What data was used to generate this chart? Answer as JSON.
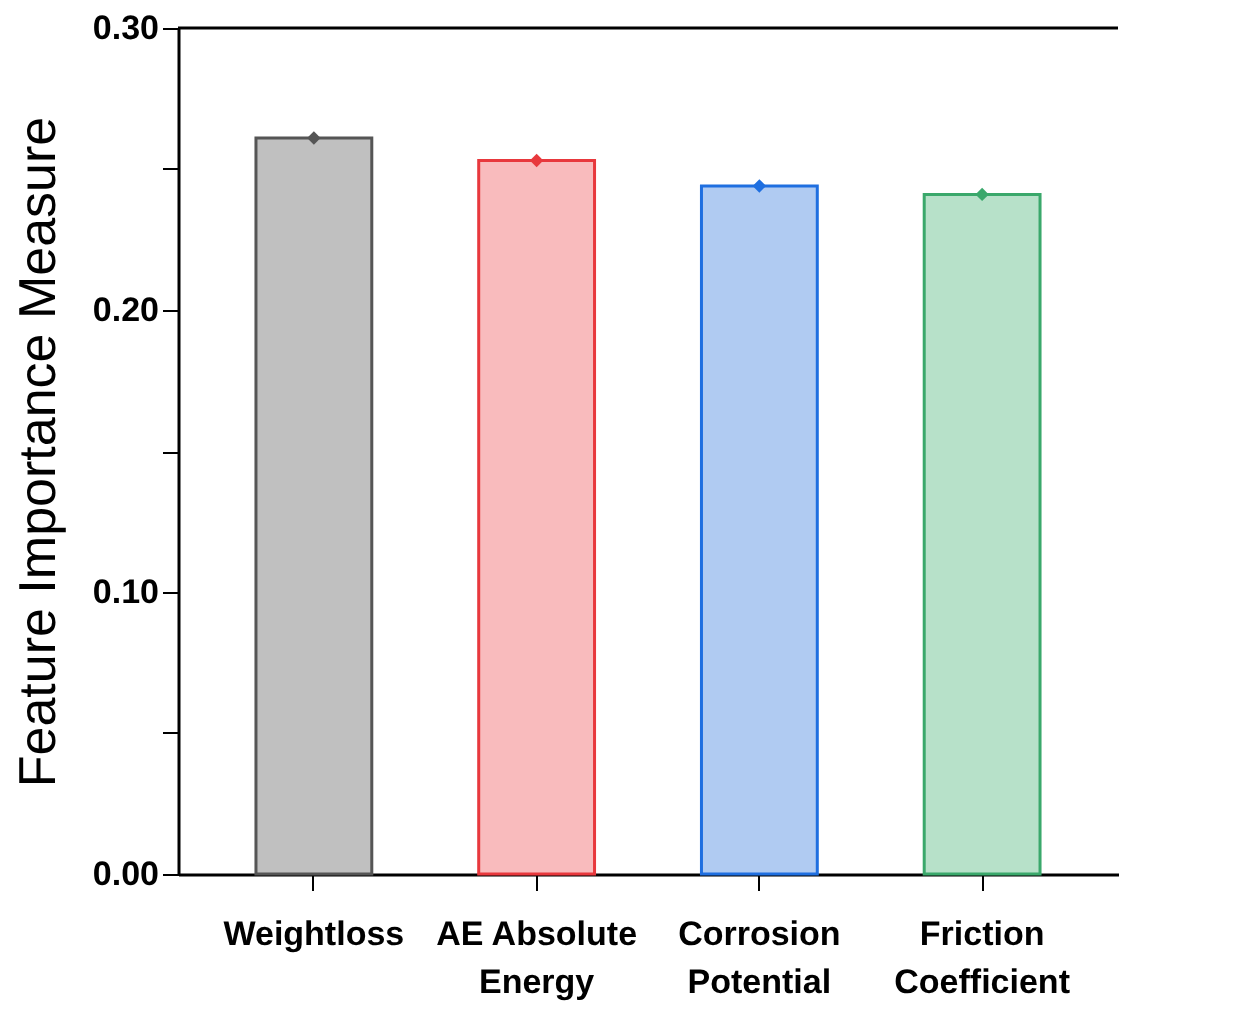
{
  "chart_data": {
    "type": "bar",
    "ylabel": "Feature Importance Measure",
    "categories": [
      "Weightloss",
      "AE Absolute\nEnergy",
      "Corrosion\nPotential",
      "Friction\nCoefficient"
    ],
    "series": [
      {
        "values": [
          0.261,
          0.253,
          0.244,
          0.241
        ],
        "colors": [
          "#c0c0c0",
          "#f9bbbd",
          "#b0cbf2",
          "#b7e1c9"
        ]
      },
      {
        "type": "scatter",
        "marker": "diamond",
        "x": [
          "Weightloss",
          "AE Absolute\nEnergy",
          "Corrosion\nPotential",
          "Friction\nCoefficient"
        ],
        "values": [
          0.261,
          0.253,
          0.244,
          0.241
        ],
        "colors": [
          "#555555",
          "#e8383d",
          "#1f6fe0",
          "#3aa86b"
        ]
      }
    ],
    "ylim": [
      0,
      0.3
    ],
    "yticks": [
      {
        "value": 0,
        "label": "0.00"
      },
      {
        "value": 0.05,
        "label": null
      },
      {
        "value": 0.1,
        "label": "0.10"
      },
      {
        "value": 0.15,
        "label": null
      },
      {
        "value": 0.2,
        "label": "0.20"
      },
      {
        "value": 0.25,
        "label": null
      },
      {
        "value": 0.3,
        "label": "0.30"
      }
    ],
    "grid": false
  }
}
